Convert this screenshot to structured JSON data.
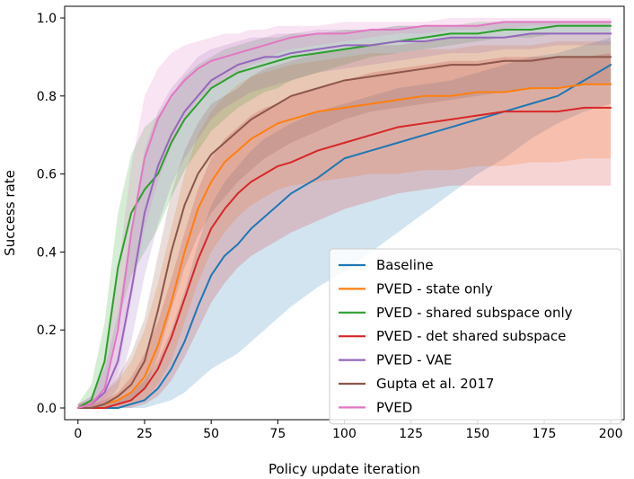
{
  "chart_data": {
    "type": "line",
    "title": "",
    "xlabel": "Policy update iteration",
    "ylabel": "Success rate",
    "xlim": [
      -5,
      205
    ],
    "ylim": [
      -0.03,
      1.03
    ],
    "xticks": [
      0,
      25,
      50,
      75,
      100,
      125,
      150,
      175,
      200
    ],
    "xtick_labels": [
      "0",
      "25",
      "50",
      "75",
      "100",
      "125",
      "150",
      "175",
      "200"
    ],
    "yticks": [
      0.0,
      0.2,
      0.4,
      0.6,
      0.8,
      1.0
    ],
    "ytick_labels": [
      "0.0",
      "0.2",
      "0.4",
      "0.6",
      "0.8",
      "1.0"
    ],
    "grid": false,
    "legend_position": "bottom-right",
    "x": [
      0,
      5,
      10,
      15,
      20,
      25,
      30,
      35,
      40,
      45,
      50,
      55,
      60,
      65,
      70,
      75,
      80,
      90,
      100,
      110,
      120,
      130,
      140,
      150,
      160,
      170,
      180,
      190,
      200
    ],
    "series": [
      {
        "name": "Baseline",
        "color": "#1f77b4",
        "values": [
          0.0,
          0.0,
          0.0,
          0.0,
          0.01,
          0.02,
          0.05,
          0.1,
          0.17,
          0.26,
          0.34,
          0.39,
          0.42,
          0.46,
          0.49,
          0.52,
          0.55,
          0.59,
          0.64,
          0.66,
          0.68,
          0.7,
          0.72,
          0.74,
          0.76,
          0.78,
          0.8,
          0.84,
          0.88
        ],
        "lower": [
          0.0,
          0.0,
          0.0,
          0.0,
          0.0,
          0.0,
          0.01,
          0.02,
          0.04,
          0.07,
          0.1,
          0.12,
          0.14,
          0.17,
          0.2,
          0.23,
          0.26,
          0.31,
          0.35,
          0.4,
          0.45,
          0.5,
          0.55,
          0.6,
          0.64,
          0.69,
          0.73,
          0.76,
          0.78
        ],
        "upper": [
          0.0,
          0.0,
          0.01,
          0.02,
          0.04,
          0.07,
          0.12,
          0.2,
          0.3,
          0.42,
          0.52,
          0.58,
          0.62,
          0.66,
          0.69,
          0.71,
          0.73,
          0.76,
          0.78,
          0.8,
          0.82,
          0.83,
          0.84,
          0.86,
          0.88,
          0.9,
          0.91,
          0.93,
          0.95
        ]
      },
      {
        "name": "PVED - state only",
        "color": "#ff7f0e",
        "values": [
          0.0,
          0.0,
          0.01,
          0.02,
          0.04,
          0.08,
          0.16,
          0.27,
          0.4,
          0.51,
          0.58,
          0.63,
          0.66,
          0.69,
          0.71,
          0.73,
          0.74,
          0.76,
          0.77,
          0.78,
          0.79,
          0.8,
          0.8,
          0.81,
          0.81,
          0.82,
          0.82,
          0.83,
          0.83
        ],
        "lower": [
          0.0,
          0.0,
          0.0,
          0.0,
          0.01,
          0.02,
          0.06,
          0.12,
          0.22,
          0.32,
          0.4,
          0.45,
          0.49,
          0.52,
          0.54,
          0.56,
          0.57,
          0.58,
          0.59,
          0.6,
          0.6,
          0.61,
          0.61,
          0.62,
          0.62,
          0.63,
          0.63,
          0.64,
          0.64
        ],
        "upper": [
          0.01,
          0.02,
          0.04,
          0.07,
          0.12,
          0.2,
          0.32,
          0.46,
          0.6,
          0.7,
          0.76,
          0.8,
          0.83,
          0.85,
          0.86,
          0.87,
          0.88,
          0.89,
          0.9,
          0.91,
          0.91,
          0.92,
          0.92,
          0.93,
          0.93,
          0.93,
          0.94,
          0.94,
          0.94
        ]
      },
      {
        "name": "PVED - shared subspace only",
        "color": "#2ca02c",
        "values": [
          0.0,
          0.02,
          0.12,
          0.36,
          0.5,
          0.56,
          0.6,
          0.68,
          0.74,
          0.78,
          0.82,
          0.84,
          0.86,
          0.87,
          0.88,
          0.89,
          0.9,
          0.91,
          0.92,
          0.93,
          0.94,
          0.95,
          0.96,
          0.96,
          0.97,
          0.97,
          0.98,
          0.98,
          0.98
        ],
        "lower": [
          0.0,
          0.0,
          0.05,
          0.22,
          0.34,
          0.4,
          0.46,
          0.54,
          0.61,
          0.66,
          0.71,
          0.74,
          0.77,
          0.79,
          0.81,
          0.82,
          0.84,
          0.86,
          0.88,
          0.9,
          0.91,
          0.92,
          0.93,
          0.94,
          0.95,
          0.95,
          0.96,
          0.96,
          0.96
        ],
        "upper": [
          0.01,
          0.06,
          0.22,
          0.5,
          0.65,
          0.72,
          0.75,
          0.8,
          0.85,
          0.88,
          0.9,
          0.92,
          0.93,
          0.94,
          0.95,
          0.95,
          0.96,
          0.96,
          0.97,
          0.97,
          0.98,
          0.98,
          0.98,
          0.99,
          0.99,
          0.99,
          0.99,
          0.99,
          0.99
        ]
      },
      {
        "name": "PVED - det shared subspace",
        "color": "#d62728",
        "values": [
          0.0,
          0.0,
          0.0,
          0.01,
          0.02,
          0.05,
          0.1,
          0.18,
          0.28,
          0.38,
          0.46,
          0.51,
          0.55,
          0.58,
          0.6,
          0.62,
          0.63,
          0.66,
          0.68,
          0.7,
          0.72,
          0.73,
          0.74,
          0.75,
          0.76,
          0.76,
          0.76,
          0.77,
          0.77
        ],
        "lower": [
          0.0,
          0.0,
          0.0,
          0.0,
          0.0,
          0.01,
          0.03,
          0.07,
          0.13,
          0.2,
          0.27,
          0.32,
          0.36,
          0.39,
          0.41,
          0.43,
          0.45,
          0.48,
          0.51,
          0.53,
          0.55,
          0.56,
          0.57,
          0.57,
          0.57,
          0.57,
          0.57,
          0.57,
          0.57
        ],
        "upper": [
          0.0,
          0.01,
          0.02,
          0.04,
          0.08,
          0.14,
          0.22,
          0.33,
          0.45,
          0.56,
          0.64,
          0.69,
          0.72,
          0.75,
          0.77,
          0.78,
          0.8,
          0.82,
          0.84,
          0.86,
          0.87,
          0.88,
          0.89,
          0.89,
          0.9,
          0.9,
          0.9,
          0.9,
          0.91
        ]
      },
      {
        "name": "PVED - VAE",
        "color": "#9467bd",
        "values": [
          0.0,
          0.01,
          0.04,
          0.12,
          0.3,
          0.5,
          0.62,
          0.7,
          0.76,
          0.8,
          0.84,
          0.86,
          0.88,
          0.89,
          0.9,
          0.9,
          0.91,
          0.92,
          0.93,
          0.93,
          0.94,
          0.94,
          0.95,
          0.95,
          0.95,
          0.96,
          0.96,
          0.96,
          0.96
        ],
        "lower": [
          0.0,
          0.0,
          0.01,
          0.05,
          0.17,
          0.34,
          0.47,
          0.57,
          0.64,
          0.69,
          0.74,
          0.77,
          0.79,
          0.81,
          0.82,
          0.83,
          0.84,
          0.86,
          0.87,
          0.88,
          0.89,
          0.9,
          0.91,
          0.91,
          0.92,
          0.92,
          0.93,
          0.93,
          0.93
        ],
        "upper": [
          0.01,
          0.03,
          0.1,
          0.24,
          0.46,
          0.66,
          0.76,
          0.82,
          0.86,
          0.9,
          0.92,
          0.93,
          0.94,
          0.95,
          0.95,
          0.96,
          0.96,
          0.97,
          0.97,
          0.97,
          0.98,
          0.98,
          0.98,
          0.98,
          0.99,
          0.99,
          0.99,
          0.99,
          0.99
        ]
      },
      {
        "name": "Gupta et al. 2017",
        "color": "#8c564b",
        "values": [
          0.0,
          0.0,
          0.01,
          0.03,
          0.06,
          0.12,
          0.25,
          0.4,
          0.52,
          0.6,
          0.65,
          0.68,
          0.71,
          0.74,
          0.76,
          0.78,
          0.8,
          0.82,
          0.84,
          0.85,
          0.86,
          0.87,
          0.88,
          0.88,
          0.89,
          0.89,
          0.9,
          0.9,
          0.9
        ],
        "lower": [
          0.0,
          0.0,
          0.0,
          0.01,
          0.02,
          0.05,
          0.13,
          0.25,
          0.36,
          0.44,
          0.5,
          0.54,
          0.58,
          0.61,
          0.64,
          0.66,
          0.68,
          0.71,
          0.74,
          0.76,
          0.77,
          0.78,
          0.79,
          0.8,
          0.81,
          0.82,
          0.82,
          0.83,
          0.83
        ],
        "upper": [
          0.01,
          0.02,
          0.04,
          0.08,
          0.14,
          0.23,
          0.39,
          0.55,
          0.66,
          0.73,
          0.78,
          0.8,
          0.82,
          0.85,
          0.87,
          0.88,
          0.89,
          0.91,
          0.92,
          0.93,
          0.93,
          0.94,
          0.95,
          0.95,
          0.95,
          0.96,
          0.96,
          0.96,
          0.96
        ]
      },
      {
        "name": "PVED",
        "color": "#e377c2",
        "values": [
          0.0,
          0.01,
          0.05,
          0.2,
          0.45,
          0.64,
          0.74,
          0.8,
          0.84,
          0.87,
          0.89,
          0.9,
          0.91,
          0.92,
          0.93,
          0.94,
          0.95,
          0.96,
          0.96,
          0.97,
          0.97,
          0.98,
          0.98,
          0.98,
          0.99,
          0.99,
          0.99,
          0.99,
          0.99
        ],
        "lower": [
          0.0,
          0.0,
          0.02,
          0.09,
          0.28,
          0.46,
          0.58,
          0.67,
          0.74,
          0.79,
          0.82,
          0.84,
          0.86,
          0.88,
          0.89,
          0.91,
          0.92,
          0.93,
          0.94,
          0.95,
          0.96,
          0.96,
          0.97,
          0.97,
          0.97,
          0.98,
          0.98,
          0.98,
          0.98
        ],
        "upper": [
          0.01,
          0.03,
          0.12,
          0.35,
          0.62,
          0.8,
          0.87,
          0.91,
          0.93,
          0.94,
          0.95,
          0.96,
          0.96,
          0.97,
          0.97,
          0.98,
          0.98,
          0.98,
          0.99,
          0.99,
          0.99,
          0.99,
          1.0,
          1.0,
          1.0,
          1.0,
          1.0,
          1.0,
          1.0
        ]
      }
    ]
  }
}
